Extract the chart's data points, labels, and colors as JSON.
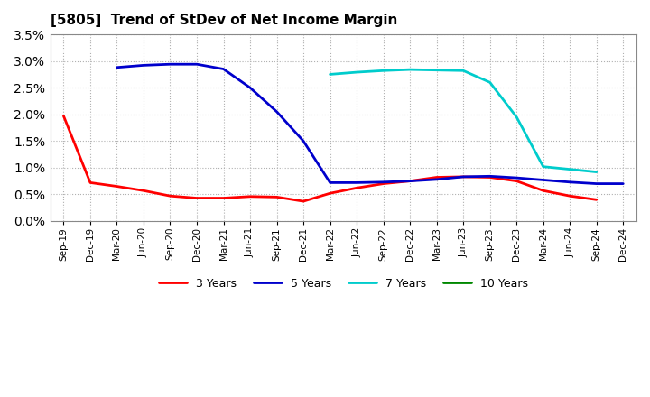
{
  "title": "[5805]  Trend of StDev of Net Income Margin",
  "background_color": "#ffffff",
  "grid_color": "#b0b0b0",
  "x_labels": [
    "Sep-19",
    "Dec-19",
    "Mar-20",
    "Jun-20",
    "Sep-20",
    "Dec-20",
    "Mar-21",
    "Jun-21",
    "Sep-21",
    "Dec-21",
    "Mar-22",
    "Jun-22",
    "Sep-22",
    "Dec-22",
    "Mar-23",
    "Jun-23",
    "Sep-23",
    "Dec-23",
    "Mar-24",
    "Jun-24",
    "Sep-24",
    "Dec-24"
  ],
  "series": {
    "3 Years": {
      "color": "#ff0000",
      "data": [
        0.0197,
        0.0072,
        0.0065,
        0.0057,
        0.0047,
        0.0043,
        0.0043,
        0.0046,
        0.0045,
        0.0037,
        0.0052,
        0.0062,
        0.007,
        0.0075,
        0.0082,
        0.0083,
        0.0082,
        0.0075,
        0.0057,
        0.0047,
        0.004,
        null
      ]
    },
    "5 Years": {
      "color": "#0000cc",
      "data": [
        null,
        null,
        0.0288,
        0.0292,
        0.0294,
        0.0294,
        0.0285,
        0.025,
        0.0205,
        0.015,
        0.0072,
        0.0072,
        0.0073,
        0.0075,
        0.0078,
        0.0083,
        0.0084,
        0.0081,
        0.0077,
        0.0073,
        0.007,
        0.007
      ]
    },
    "7 Years": {
      "color": "#00cccc",
      "data": [
        null,
        null,
        null,
        null,
        null,
        null,
        null,
        null,
        null,
        null,
        0.0275,
        0.0279,
        0.0282,
        0.0284,
        0.0283,
        0.0282,
        0.026,
        0.0195,
        0.0102,
        0.0097,
        0.0092,
        null
      ]
    },
    "10 Years": {
      "color": "#008800",
      "data": [
        null,
        null,
        null,
        null,
        null,
        null,
        null,
        null,
        null,
        null,
        null,
        null,
        null,
        null,
        null,
        null,
        null,
        null,
        null,
        null,
        null,
        null
      ]
    }
  },
  "ylim": [
    0,
    0.035
  ],
  "yticks": [
    0.0,
    0.005,
    0.01,
    0.015,
    0.02,
    0.025,
    0.03,
    0.035
  ]
}
